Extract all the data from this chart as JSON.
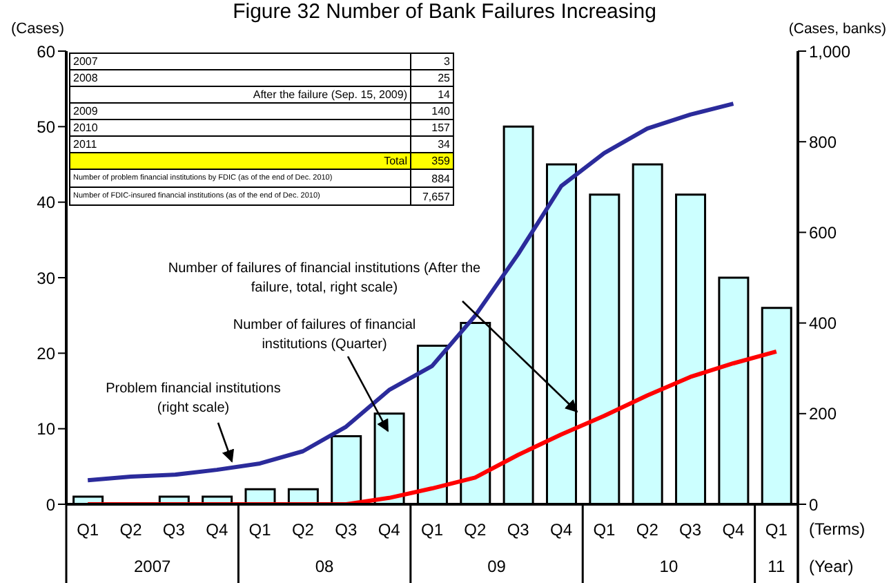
{
  "chart_data": {
    "type": "bar",
    "title": "Figure 32 Number of Bank Failures Increasing",
    "ylabel": "(Cases)",
    "y2label": "(Cases, banks)",
    "xlabel": "(Terms)",
    "categories": [
      "Q1",
      "Q2",
      "Q3",
      "Q4",
      "Q1",
      "Q2",
      "Q3",
      "Q4",
      "Q1",
      "Q2",
      "Q3",
      "Q4",
      "Q1",
      "Q2",
      "Q3",
      "Q4",
      "Q1"
    ],
    "series": [
      {
        "name": "Number of failures of financial institutions (Quarter)",
        "color": "#ccffff",
        "values": [
          1,
          0,
          1,
          1,
          2,
          2,
          9,
          12,
          21,
          24,
          50,
          45,
          41,
          45,
          41,
          30,
          26
        ]
      },
      {
        "name": "Problem financial institutions (right scale)",
        "type": "line",
        "axis": "y2",
        "color": "#2b2b9b",
        "values": [
          53,
          61,
          65,
          76,
          90,
          117,
          171,
          252,
          305,
          416,
          552,
          702,
          775,
          829,
          860,
          884,
          null
        ]
      },
      {
        "name": "Number of failures of financial institutions (After the failure, total, right scale)",
        "type": "line",
        "axis": "y2",
        "color": "#ff0000",
        "values": [
          0,
          0,
          0,
          0,
          0,
          0,
          0,
          14,
          35,
          59,
          109,
          154,
          195,
          240,
          281,
          311,
          337
        ]
      }
    ],
    "ylim": [
      0,
      60
    ],
    "yticks": [
      0,
      10,
      20,
      30,
      40,
      50,
      60
    ],
    "y2lim": [
      0,
      1000
    ],
    "y2ticks": [
      0,
      200,
      400,
      600,
      800,
      {
        "value": 1000,
        "label": "1,000"
      }
    ],
    "annotations": [
      "(Year)",
      "2007",
      "08",
      "09",
      "10",
      "11",
      "2007",
      "3",
      "2008",
      "25",
      "After the failure (Sep. 15, 2009)",
      "14",
      "2009",
      "140",
      "2010",
      "157",
      "2011",
      "34",
      "Total",
      "359",
      "Number of problem financial institutions by FDIC (as of the end of Dec. 2010)",
      "884",
      "Number of FDIC-insured financial institutions (as of the end of Dec. 2010)",
      "7,657"
    ]
  }
}
